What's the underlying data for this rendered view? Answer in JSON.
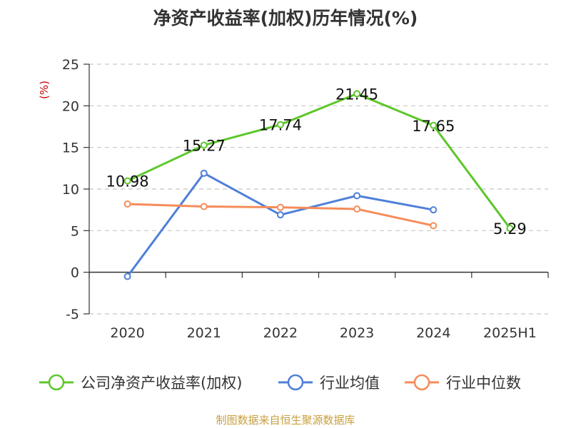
{
  "chart_data": {
    "type": "line",
    "title": "净资产收益率(加权)历年情况(%)",
    "ylabel": "(%)",
    "ylim": [
      -5,
      25
    ],
    "yticks": [
      -5,
      0,
      5,
      10,
      15,
      20,
      25
    ],
    "categories": [
      "2020",
      "2021",
      "2022",
      "2023",
      "2024",
      "2025H1"
    ],
    "grid": true,
    "legend_position": "bottom",
    "series": [
      {
        "name": "公司净资产收益率(加权)",
        "color": "#5dc72a",
        "show_labels": true,
        "values": [
          10.98,
          15.27,
          17.74,
          21.45,
          17.65,
          5.29
        ]
      },
      {
        "name": "行业均值",
        "color": "#4f7fd8",
        "show_labels": false,
        "values": [
          -0.5,
          11.9,
          6.9,
          9.2,
          7.5,
          null
        ]
      },
      {
        "name": "行业中位数",
        "color": "#f58c5a",
        "show_labels": false,
        "values": [
          8.2,
          7.9,
          7.8,
          7.6,
          5.6,
          null
        ]
      }
    ]
  },
  "source": "制图数据来自恒生聚源数据库"
}
